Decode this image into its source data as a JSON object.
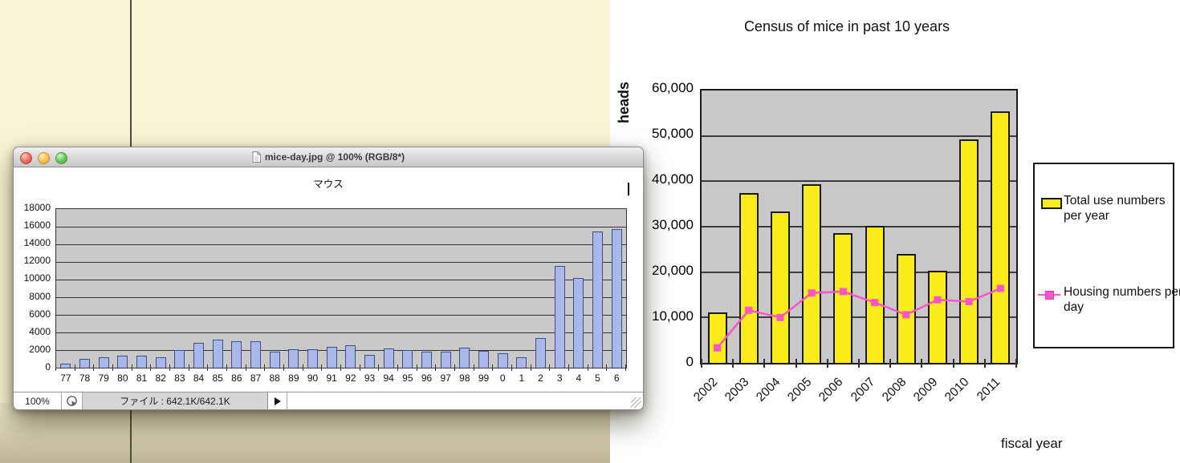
{
  "background": {
    "left_color": "#FAF3D6",
    "right_color": "#FFFFFF",
    "divider_color": "#4F4A42"
  },
  "window": {
    "title": "mice-day.jpg @ 100% (RGB/8*)",
    "icons": {
      "titlebar_file": "document-icon",
      "close": "close-icon",
      "minimize": "minimize-icon",
      "zoom": "zoom-icon",
      "status_proxy": "pie-chart-icon",
      "status_expand": "play-arrow-icon"
    },
    "traffic_light_colors": {
      "close": "#EC6C5F",
      "minimize": "#F6BF50",
      "zoom": "#64C455"
    },
    "status": {
      "zoom_level": "100%",
      "file_info": "ファイル : 642.1K/642.1K"
    }
  },
  "chart_data": [
    {
      "type": "bar",
      "title": "マウス",
      "categories": [
        "77",
        "78",
        "79",
        "80",
        "81",
        "82",
        "83",
        "84",
        "85",
        "86",
        "87",
        "88",
        "89",
        "90",
        "91",
        "92",
        "93",
        "94",
        "95",
        "96",
        "97",
        "98",
        "99",
        "0",
        "1",
        "2",
        "3",
        "4",
        "5",
        "6"
      ],
      "values": [
        400,
        900,
        1050,
        1300,
        1300,
        1100,
        1900,
        2700,
        3050,
        2950,
        2950,
        1750,
        2000,
        2000,
        2250,
        2500,
        1350,
        2050,
        1950,
        1700,
        1750,
        2150,
        1850,
        1550,
        1100,
        3300,
        11500,
        10100,
        15400,
        15600
      ],
      "xlabel": "",
      "ylabel": "",
      "ylim": [
        0,
        18000
      ],
      "ytick_step": 2000,
      "ytick_format": "plain",
      "grid": true,
      "legend_position": "none",
      "plot_bg": "#C9C9C9",
      "bar_color": "#A9B7EA",
      "bar_border": "#3E4E86"
    },
    {
      "type": "bar+line",
      "title": "Census of mice in past 10 years",
      "categories": [
        "2002",
        "2003",
        "2004",
        "2005",
        "2006",
        "2007",
        "2008",
        "2009",
        "2010",
        "2011"
      ],
      "series": [
        {
          "name": "Total use numbers per year",
          "type": "bar",
          "color": "#F9EC1A",
          "values": [
            10800,
            37000,
            33000,
            39000,
            28200,
            29800,
            23600,
            20000,
            48800,
            55000
          ]
        },
        {
          "name": "Housing numbers per day",
          "type": "line",
          "color": "#FA54C8",
          "values": [
            3300,
            11600,
            10000,
            15400,
            15700,
            13300,
            10600,
            13900,
            13500,
            16400
          ]
        }
      ],
      "xlabel": "fiscal year",
      "ylabel": "heads",
      "ylim": [
        0,
        60000
      ],
      "ytick_step": 10000,
      "ytick_format": "comma",
      "grid": true,
      "legend_position": "right",
      "plot_bg": "#C8C8C8"
    }
  ]
}
